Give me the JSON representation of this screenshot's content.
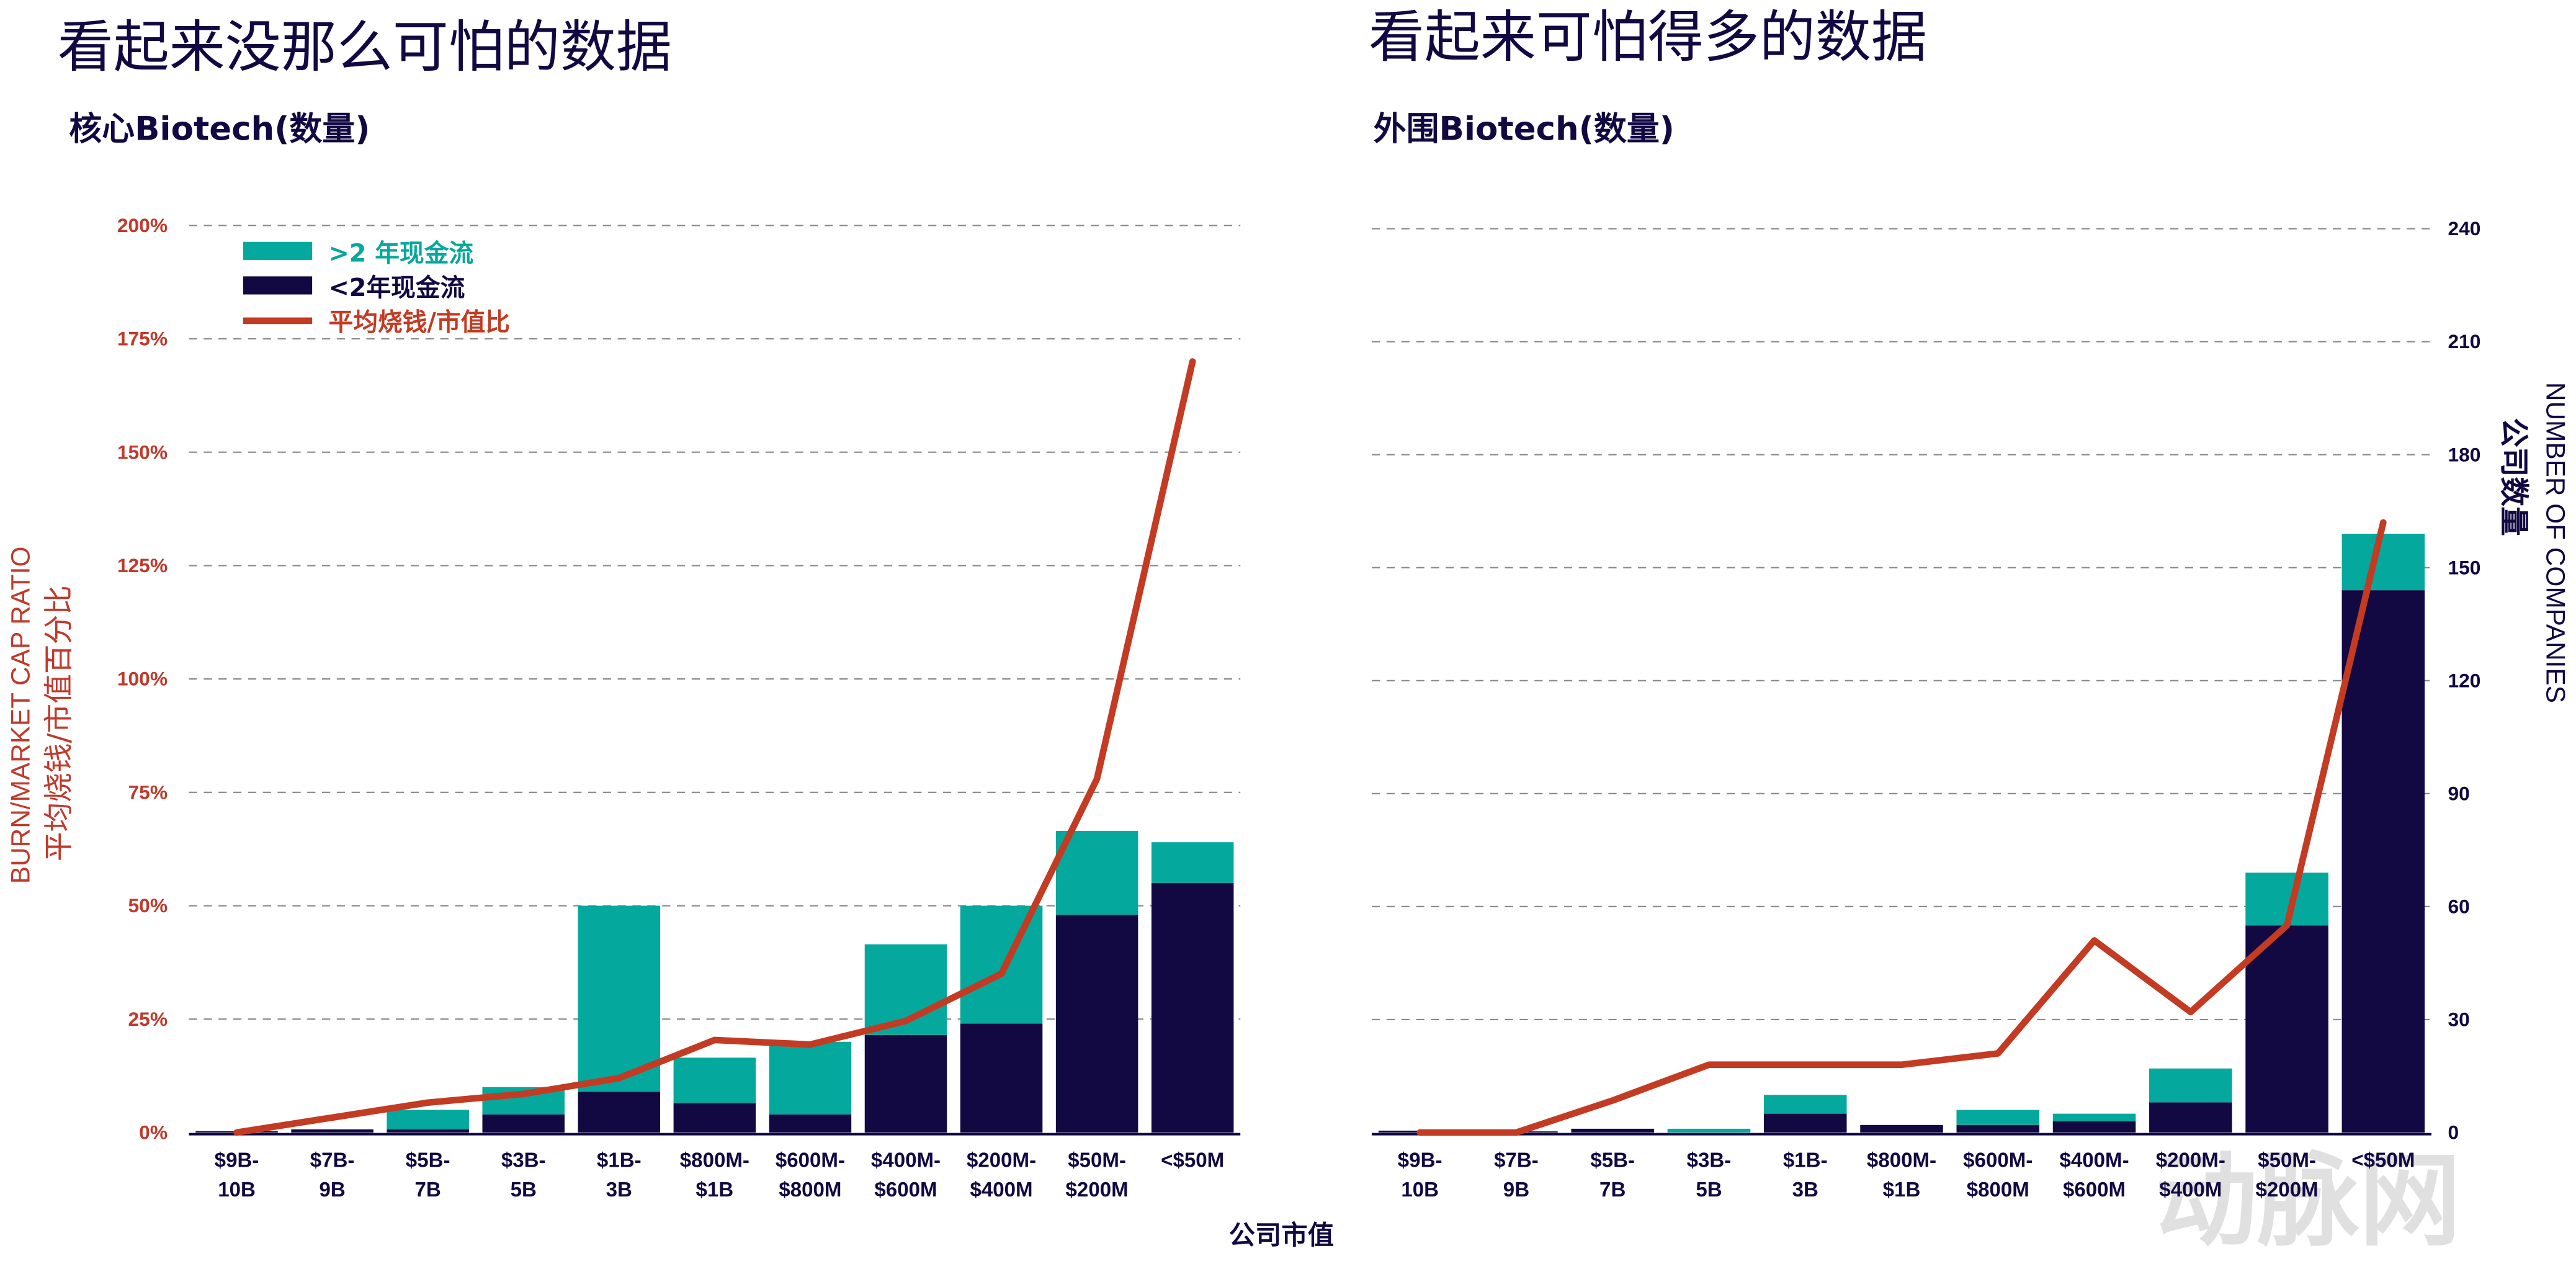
{
  "left": {
    "title": "看起来没那么可怕的数据",
    "subtitle": "核心Biotech(数量)"
  },
  "right": {
    "title": "看起来可怕得多的数据",
    "subtitle": "外围Biotech(数量)"
  },
  "shared_xlabel": "公司市值",
  "watermark": "动脉网",
  "colors": {
    "more_than_2y": "#04a89c",
    "less_than_2y": "#120842",
    "burn_ratio": "#c23b22",
    "axis_text_red": "#c0392b"
  },
  "legend": [
    {
      "label": ">2 年现金流",
      "color": "#04a89c",
      "kind": "bar"
    },
    {
      "label": "<2年现金流",
      "color": "#120842",
      "kind": "bar"
    },
    {
      "label": "平均烧钱/市值比",
      "color": "#c23b22",
      "kind": "line"
    }
  ],
  "chart_data": [
    {
      "type": "bar",
      "stacked": true,
      "title": "核心Biotech(数量)",
      "categories": [
        [
          "$9B-",
          "10B"
        ],
        [
          "$7B-",
          "9B"
        ],
        [
          "$5B-",
          "7B"
        ],
        [
          "$3B-",
          "5B"
        ],
        [
          "$1B-",
          "3B"
        ],
        [
          "$800M-",
          "$1B"
        ],
        [
          "$600M-",
          "$800M"
        ],
        [
          "$400M-",
          "$600M"
        ],
        [
          "$200M-",
          "$400M"
        ],
        [
          "$50M-",
          "$200M"
        ],
        [
          "<$50M",
          ""
        ]
      ],
      "ylabel": [
        "BURN/MARKET CAP RATIO",
        "平均烧钱/市值百分比"
      ],
      "ylim": [
        0,
        200
      ],
      "yticks": [
        "0%",
        "25%",
        "50%",
        "75%",
        "100%",
        "125%",
        "150%",
        "175%",
        "200%"
      ],
      "grid": true,
      "legend_position": "top-left",
      "series": [
        {
          "name": "<2年现金流",
          "values": [
            0.3,
            0.7,
            0.7,
            4,
            9,
            6.5,
            4,
            21.5,
            24,
            48,
            55
          ]
        },
        {
          "name": ">2 年现金流",
          "values": [
            0,
            0,
            4.3,
            6,
            41,
            10,
            16,
            20,
            26,
            18.5,
            9
          ]
        },
        {
          "name": "平均烧钱/市值比",
          "type": "line",
          "values": [
            0,
            3.3,
            6.6,
            8.5,
            12,
            20.4,
            19.4,
            24.6,
            35,
            78,
            170
          ]
        }
      ]
    },
    {
      "type": "bar",
      "stacked": true,
      "title": "外围Biotech(数量)",
      "categories": [
        [
          "$9B-",
          "10B"
        ],
        [
          "$7B-",
          "9B"
        ],
        [
          "$5B-",
          "7B"
        ],
        [
          "$3B-",
          "5B"
        ],
        [
          "$1B-",
          "3B"
        ],
        [
          "$800M-",
          "$1B"
        ],
        [
          "$600M-",
          "$800M"
        ],
        [
          "$400M-",
          "$600M"
        ],
        [
          "$200M-",
          "$400M"
        ],
        [
          "$50M-",
          "$200M"
        ],
        [
          "<$50M",
          ""
        ]
      ],
      "ylabel": [
        "NUMBER OF COMPANIES",
        "公司数量"
      ],
      "ylim": [
        0,
        240
      ],
      "yticks": [
        "0",
        "30",
        "60",
        "90",
        "120",
        "150",
        "180",
        "210",
        "240"
      ],
      "y_axis_side": "right",
      "grid": true,
      "series": [
        {
          "name": "<2年现金流",
          "values": [
            0.5,
            0.3,
            1,
            0,
            5,
            2,
            2,
            3,
            8,
            55,
            144
          ]
        },
        {
          "name": ">2 年现金流",
          "values": [
            0,
            0,
            0,
            1,
            5,
            0,
            4,
            2,
            9,
            14,
            15
          ]
        },
        {
          "name": "平均烧钱/市值比",
          "type": "line",
          "values": [
            0,
            0,
            8.5,
            18,
            18,
            18,
            21,
            51,
            32,
            55,
            162
          ]
        }
      ]
    }
  ]
}
